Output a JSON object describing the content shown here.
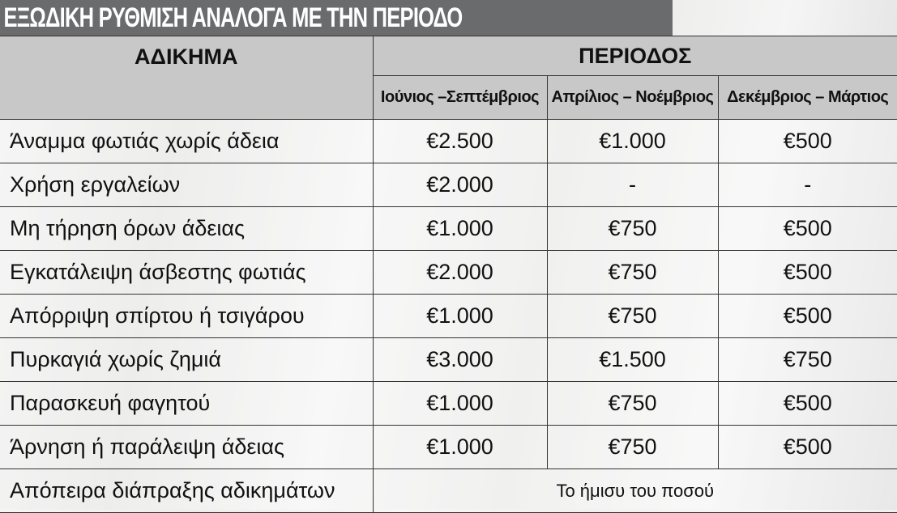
{
  "title": "ΕΞΩΔΙΚΗ ΡΥΘΜΙΣΗ ΑΝΑΛΟΓΑ ΜΕ ΤΗΝ ΠΕΡΙΟΔΟ",
  "headers": {
    "offense": "ΑΔΙΚΗΜΑ",
    "period": "ΠΕΡΙΟΔΟΣ",
    "periods": [
      "Ιούνιος –Σεπτέμβριος",
      "Απρίλιος – Νοέμβριος",
      "Δεκέμβριος – Μάρτιος"
    ]
  },
  "rows": [
    {
      "name": "Άναμμα φωτιάς χωρίς άδεια",
      "values": [
        "€2.500",
        "€1.000",
        "€500"
      ]
    },
    {
      "name": "Χρήση εργαλείων",
      "values": [
        "€2.000",
        "-",
        "-"
      ]
    },
    {
      "name": "Μη τήρηση όρων άδειας",
      "values": [
        "€1.000",
        "€750",
        "€500"
      ]
    },
    {
      "name": "Εγκατάλειψη άσβεστης φωτιάς",
      "values": [
        "€2.000",
        "€750",
        "€500"
      ]
    },
    {
      "name": "Απόρριψη σπίρτου ή τσιγάρου",
      "values": [
        "€1.000",
        "€750",
        "€500"
      ]
    },
    {
      "name": "Πυρκαγιά χωρίς ζημιά",
      "values": [
        "€3.000",
        "€1.500",
        "€750"
      ]
    },
    {
      "name": "Παρασκευή φαγητού",
      "values": [
        "€1.000",
        "€750",
        "€500"
      ]
    },
    {
      "name": "Άρνηση ή παράλειψη άδειας",
      "values": [
        "€1.000",
        "€750",
        "€500"
      ]
    }
  ],
  "last_row": {
    "name": "Απόπειρα διάπραξης αδικημάτων",
    "value": "Το ήμισυ του ποσού"
  }
}
